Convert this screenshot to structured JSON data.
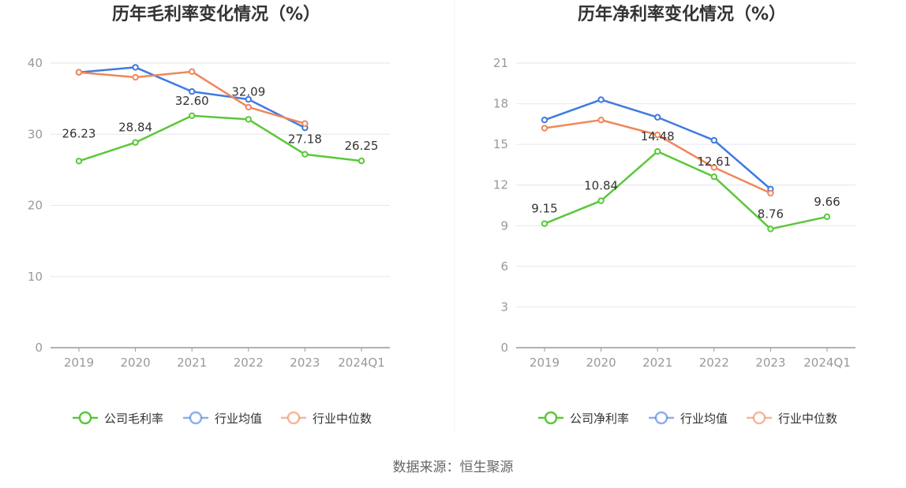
{
  "source": "数据来源：恒生聚源",
  "chart_data": [
    {
      "type": "line",
      "title": "历年毛利率变化情况（%）",
      "categories": [
        "2019",
        "2020",
        "2021",
        "2022",
        "2023",
        "2024Q1"
      ],
      "ylim": [
        0,
        40
      ],
      "yticks": [
        0,
        10,
        20,
        30,
        40
      ],
      "grid": true,
      "legend_position": "bottom",
      "series": [
        {
          "name": "公司毛利率",
          "color": "#5ac83a",
          "values": [
            26.23,
            28.84,
            32.6,
            32.09,
            27.18,
            26.25
          ],
          "labels": [
            "26.23",
            "28.84",
            "32.60",
            "32.09",
            "27.18",
            "26.25"
          ]
        },
        {
          "name": "行业均值",
          "color": "#3f7ae0",
          "values": [
            38.7,
            39.4,
            36.0,
            34.9,
            30.9,
            null
          ]
        },
        {
          "name": "行业中位数",
          "color": "#f0875a",
          "values": [
            38.7,
            38.0,
            38.8,
            33.8,
            31.5,
            null
          ]
        }
      ]
    },
    {
      "type": "line",
      "title": "历年净利率变化情况（%）",
      "categories": [
        "2019",
        "2020",
        "2021",
        "2022",
        "2023",
        "2024Q1"
      ],
      "ylim": [
        0,
        21
      ],
      "yticks": [
        0,
        3,
        6,
        9,
        12,
        15,
        18,
        21
      ],
      "grid": true,
      "legend_position": "bottom",
      "series": [
        {
          "name": "公司净利率",
          "color": "#5ac83a",
          "values": [
            9.15,
            10.84,
            14.48,
            12.61,
            8.76,
            9.66
          ],
          "labels": [
            "9.15",
            "10.84",
            "14.48",
            "12.61",
            "8.76",
            "9.66"
          ]
        },
        {
          "name": "行业均值",
          "color": "#3f7ae0",
          "values": [
            16.8,
            18.3,
            17.0,
            15.3,
            11.7,
            null
          ]
        },
        {
          "name": "行业中位数",
          "color": "#f0875a",
          "values": [
            16.2,
            16.8,
            15.7,
            13.3,
            11.4,
            null
          ]
        }
      ]
    }
  ]
}
